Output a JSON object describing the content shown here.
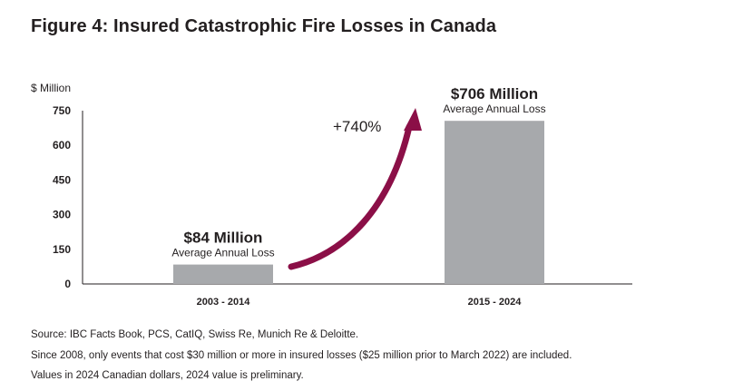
{
  "figure_title": "Figure 4: Insured Catastrophic Fire Losses in Canada",
  "colors": {
    "bar": "#a7a9ac",
    "arrow": "#8b0f47",
    "axis": "#231f20",
    "text": "#231f20"
  },
  "chart_data": {
    "type": "bar",
    "ylabel": "$ Million",
    "ylim": [
      0,
      750
    ],
    "yticks": [
      0,
      150,
      300,
      450,
      600,
      750
    ],
    "categories": [
      "2003 - 2014",
      "2015 - 2024"
    ],
    "values": [
      84,
      706
    ],
    "data_labels": [
      {
        "value_text": "$84 Million",
        "sub_text": "Average Annual Loss"
      },
      {
        "value_text": "$706 Million",
        "sub_text": "Average Annual Loss"
      }
    ],
    "annotation": "+740%",
    "grid": false,
    "legend": "none"
  },
  "footnotes": [
    "Source: IBC Facts Book, PCS, CatIQ, Swiss Re, Munich Re & Deloitte.",
    "Since 2008, only events that cost $30 million or more in insured losses ($25 million prior to March 2022) are included.",
    "Values in 2024 Canadian dollars, 2024 value is preliminary."
  ]
}
